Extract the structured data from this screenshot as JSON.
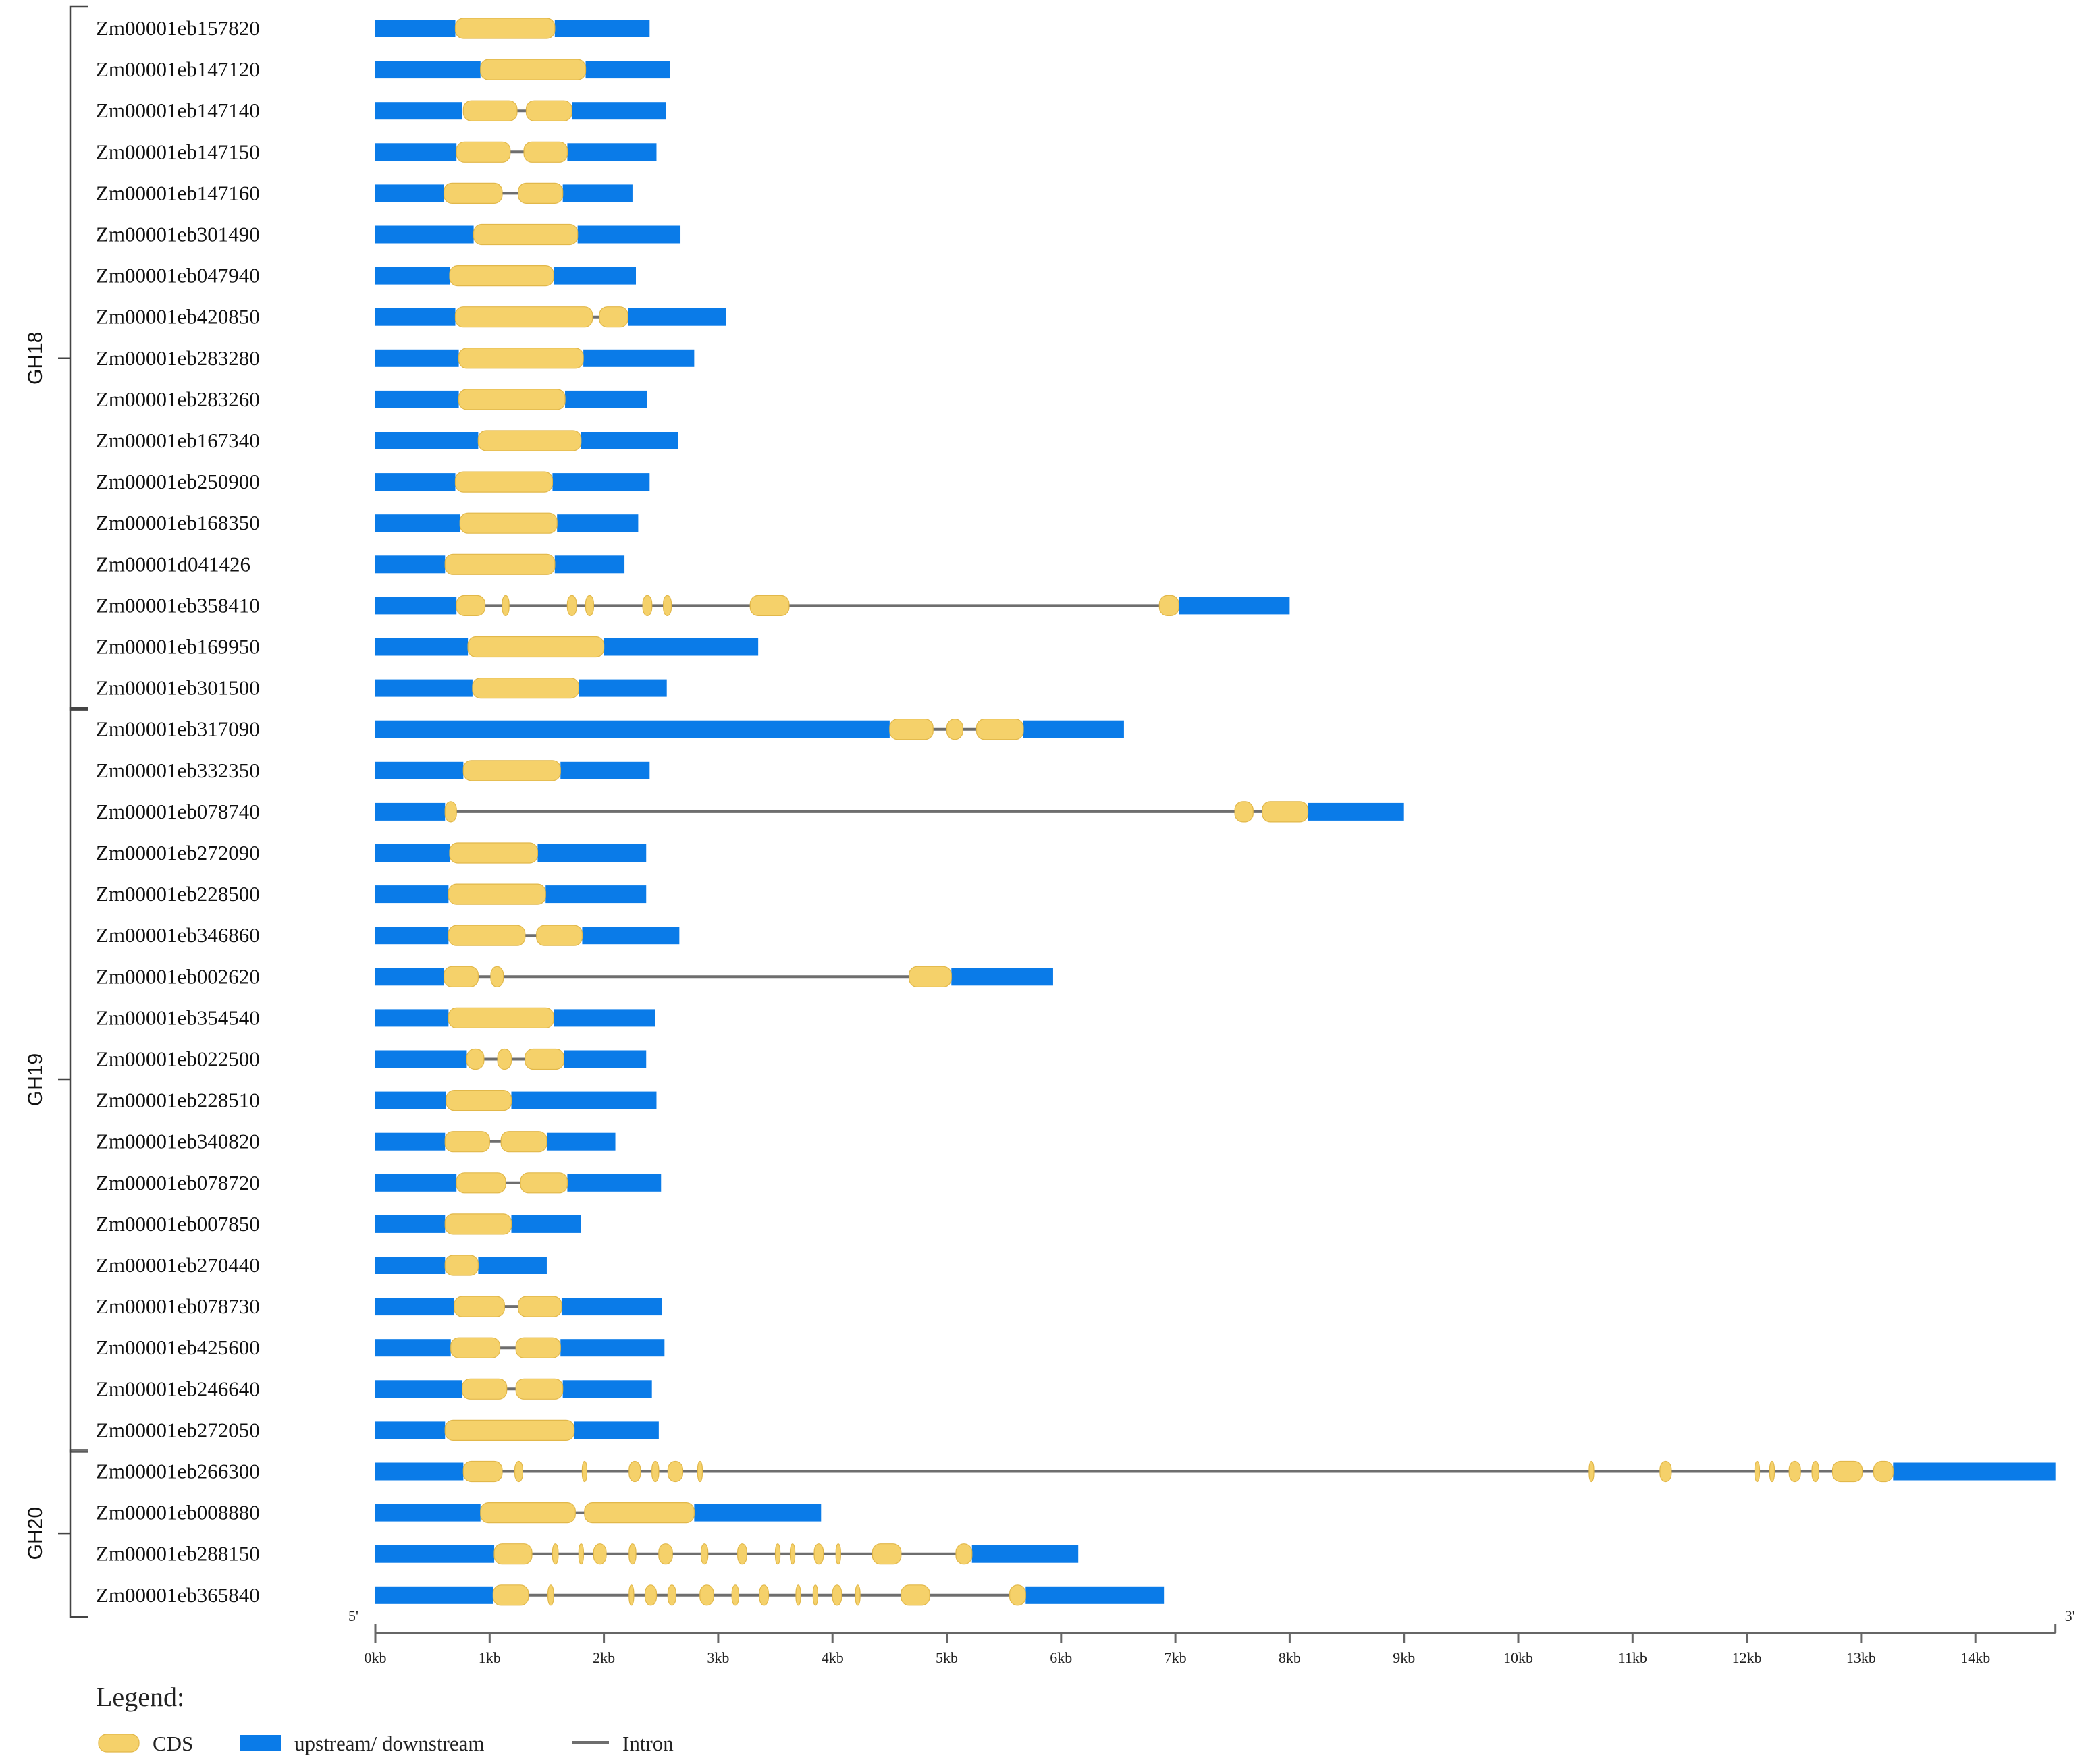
{
  "colors": {
    "cds": "#F5D16A",
    "cds_stroke": "#E2B84A",
    "utr": "#0A7BE8",
    "intron": "#6E6E6E",
    "axis": "#666666",
    "text": "#111111"
  },
  "axis": {
    "min_kb": 0,
    "max_kb": 14.7,
    "start_label": "5'",
    "end_label": "3'",
    "ticks": [
      "0kb",
      "1kb",
      "2kb",
      "3kb",
      "4kb",
      "5kb",
      "6kb",
      "7kb",
      "8kb",
      "9kb",
      "10kb",
      "11kb",
      "12kb",
      "13kb",
      "14kb"
    ]
  },
  "legend": {
    "title": "Legend:",
    "items": [
      {
        "type": "cds",
        "label": "CDS"
      },
      {
        "type": "utr",
        "label": "upstream/ downstream"
      },
      {
        "type": "intron",
        "label": "Intron"
      }
    ]
  },
  "groups": [
    {
      "label": "GH18",
      "first": 0,
      "last": 16
    },
    {
      "label": "GH19",
      "first": 17,
      "last": 34
    },
    {
      "label": "GH20",
      "first": 35,
      "last": 38
    }
  ],
  "chart_data": {
    "type": "gene-structure",
    "unit": "kb",
    "genes": [
      {
        "name": "Zm00001eb157820",
        "utr5": [
          0,
          0.7
        ],
        "cds": [
          [
            0.7,
            1.57
          ]
        ],
        "utr3": [
          1.57,
          2.4
        ]
      },
      {
        "name": "Zm00001eb147120",
        "utr5": [
          0,
          0.92
        ],
        "cds": [
          [
            0.92,
            1.84
          ]
        ],
        "utr3": [
          1.84,
          2.58
        ]
      },
      {
        "name": "Zm00001eb147140",
        "utr5": [
          0,
          0.76
        ],
        "cds": [
          [
            0.77,
            1.24
          ],
          [
            1.32,
            1.72
          ]
        ],
        "utr3": [
          1.72,
          2.54
        ]
      },
      {
        "name": "Zm00001eb147150",
        "utr5": [
          0,
          0.71
        ],
        "cds": [
          [
            0.71,
            1.18
          ],
          [
            1.3,
            1.68
          ]
        ],
        "utr3": [
          1.68,
          2.46
        ]
      },
      {
        "name": "Zm00001eb147160",
        "utr5": [
          0,
          0.6
        ],
        "cds": [
          [
            0.6,
            1.11
          ],
          [
            1.25,
            1.64
          ]
        ],
        "utr3": [
          1.64,
          2.25
        ]
      },
      {
        "name": "Zm00001eb301490",
        "utr5": [
          0,
          0.86
        ],
        "cds": [
          [
            0.86,
            1.77
          ]
        ],
        "utr3": [
          1.77,
          2.67
        ]
      },
      {
        "name": "Zm00001eb047940",
        "utr5": [
          0,
          0.65
        ],
        "cds": [
          [
            0.65,
            1.56
          ]
        ],
        "utr3": [
          1.56,
          2.28
        ]
      },
      {
        "name": "Zm00001eb420850",
        "utr5": [
          0,
          0.7
        ],
        "cds": [
          [
            0.7,
            1.9
          ],
          [
            1.96,
            2.21
          ]
        ],
        "utr3": [
          2.21,
          3.07
        ]
      },
      {
        "name": "Zm00001eb283280",
        "utr5": [
          0,
          0.73
        ],
        "cds": [
          [
            0.73,
            1.82
          ]
        ],
        "utr3": [
          1.82,
          2.79
        ]
      },
      {
        "name": "Zm00001eb283260",
        "utr5": [
          0,
          0.73
        ],
        "cds": [
          [
            0.73,
            1.66
          ]
        ],
        "utr3": [
          1.66,
          2.38
        ]
      },
      {
        "name": "Zm00001eb167340",
        "utr5": [
          0,
          0.9
        ],
        "cds": [
          [
            0.9,
            1.8
          ]
        ],
        "utr3": [
          1.8,
          2.65
        ]
      },
      {
        "name": "Zm00001eb250900",
        "utr5": [
          0,
          0.7
        ],
        "cds": [
          [
            0.7,
            1.55
          ]
        ],
        "utr3": [
          1.55,
          2.4
        ]
      },
      {
        "name": "Zm00001eb168350",
        "utr5": [
          0,
          0.74
        ],
        "cds": [
          [
            0.74,
            1.59
          ]
        ],
        "utr3": [
          1.59,
          2.3
        ]
      },
      {
        "name": "Zm00001d041426",
        "utr5": [
          0,
          0.61
        ],
        "cds": [
          [
            0.61,
            1.57
          ]
        ],
        "utr3": [
          1.57,
          2.18
        ]
      },
      {
        "name": "Zm00001eb358410",
        "utr5": [
          0,
          0.71
        ],
        "cds": [
          [
            0.71,
            0.96
          ],
          [
            1.11,
            1.17
          ],
          [
            1.68,
            1.76
          ],
          [
            1.84,
            1.91
          ],
          [
            2.34,
            2.42
          ],
          [
            2.52,
            2.59
          ],
          [
            3.28,
            3.62
          ],
          [
            6.86,
            7.03
          ]
        ],
        "utr3": [
          7.03,
          8.0
        ]
      },
      {
        "name": "Zm00001eb169950",
        "utr5": [
          0,
          0.81
        ],
        "cds": [
          [
            0.81,
            2.0
          ]
        ],
        "utr3": [
          2.0,
          3.35
        ]
      },
      {
        "name": "Zm00001eb301500",
        "utr5": [
          0,
          0.85
        ],
        "cds": [
          [
            0.85,
            1.78
          ]
        ],
        "utr3": [
          1.78,
          2.55
        ]
      },
      {
        "name": "Zm00001eb317090",
        "utr5": [
          0,
          4.5
        ],
        "cds": [
          [
            4.5,
            4.88
          ],
          [
            5.0,
            5.14
          ],
          [
            5.26,
            5.67
          ]
        ],
        "utr3": [
          5.67,
          6.55
        ]
      },
      {
        "name": "Zm00001eb332350",
        "utr5": [
          0,
          0.77
        ],
        "cds": [
          [
            0.77,
            1.62
          ]
        ],
        "utr3": [
          1.62,
          2.4
        ]
      },
      {
        "name": "Zm00001eb078740",
        "utr5": [
          0,
          0.61
        ],
        "cds": [
          [
            0.61,
            0.71
          ],
          [
            7.52,
            7.68
          ],
          [
            7.76,
            8.16
          ]
        ],
        "utr3": [
          8.16,
          9.0
        ]
      },
      {
        "name": "Zm00001eb272090",
        "utr5": [
          0,
          0.65
        ],
        "cds": [
          [
            0.65,
            1.42
          ]
        ],
        "utr3": [
          1.42,
          2.37
        ]
      },
      {
        "name": "Zm00001eb228500",
        "utr5": [
          0,
          0.64
        ],
        "cds": [
          [
            0.64,
            1.49
          ]
        ],
        "utr3": [
          1.49,
          2.37
        ]
      },
      {
        "name": "Zm00001eb346860",
        "utr5": [
          0,
          0.64
        ],
        "cds": [
          [
            0.64,
            1.31
          ],
          [
            1.41,
            1.81
          ]
        ],
        "utr3": [
          1.81,
          2.66
        ]
      },
      {
        "name": "Zm00001eb002620",
        "utr5": [
          0,
          0.6
        ],
        "cds": [
          [
            0.6,
            0.9
          ],
          [
            1.01,
            1.12
          ],
          [
            4.67,
            5.04
          ]
        ],
        "utr3": [
          5.04,
          5.93
        ]
      },
      {
        "name": "Zm00001eb354540",
        "utr5": [
          0,
          0.64
        ],
        "cds": [
          [
            0.64,
            1.56
          ]
        ],
        "utr3": [
          1.56,
          2.45
        ]
      },
      {
        "name": "Zm00001eb022500",
        "utr5": [
          0,
          0.8
        ],
        "cds": [
          [
            0.8,
            0.95
          ],
          [
            1.07,
            1.19
          ],
          [
            1.31,
            1.65
          ]
        ],
        "utr3": [
          1.65,
          2.37
        ]
      },
      {
        "name": "Zm00001eb228510",
        "utr5": [
          0,
          0.62
        ],
        "cds": [
          [
            0.62,
            1.19
          ]
        ],
        "utr3": [
          1.19,
          2.46
        ]
      },
      {
        "name": "Zm00001eb340820",
        "utr5": [
          0,
          0.61
        ],
        "cds": [
          [
            0.61,
            1.0
          ],
          [
            1.1,
            1.5
          ]
        ],
        "utr3": [
          1.5,
          2.1
        ]
      },
      {
        "name": "Zm00001eb078720",
        "utr5": [
          0,
          0.71
        ],
        "cds": [
          [
            0.71,
            1.14
          ],
          [
            1.27,
            1.68
          ]
        ],
        "utr3": [
          1.68,
          2.5
        ]
      },
      {
        "name": "Zm00001eb007850",
        "utr5": [
          0,
          0.61
        ],
        "cds": [
          [
            0.61,
            1.19
          ]
        ],
        "utr3": [
          1.19,
          1.8
        ]
      },
      {
        "name": "Zm00001eb270440",
        "utr5": [
          0,
          0.61
        ],
        "cds": [
          [
            0.61,
            0.9
          ]
        ],
        "utr3": [
          0.9,
          1.5
        ]
      },
      {
        "name": "Zm00001eb078730",
        "utr5": [
          0,
          0.69
        ],
        "cds": [
          [
            0.69,
            1.13
          ],
          [
            1.25,
            1.63
          ]
        ],
        "utr3": [
          1.63,
          2.51
        ]
      },
      {
        "name": "Zm00001eb425600",
        "utr5": [
          0,
          0.66
        ],
        "cds": [
          [
            0.66,
            1.09
          ],
          [
            1.23,
            1.62
          ]
        ],
        "utr3": [
          1.62,
          2.53
        ]
      },
      {
        "name": "Zm00001eb246640",
        "utr5": [
          0,
          0.76
        ],
        "cds": [
          [
            0.76,
            1.15
          ],
          [
            1.23,
            1.64
          ]
        ],
        "utr3": [
          1.64,
          2.42
        ]
      },
      {
        "name": "Zm00001eb272050",
        "utr5": [
          0,
          0.61
        ],
        "cds": [
          [
            0.61,
            1.74
          ]
        ],
        "utr3": [
          1.74,
          2.48
        ]
      },
      {
        "name": "Zm00001eb266300",
        "utr5": [
          0,
          0.77
        ],
        "cds": [
          [
            0.77,
            1.11
          ],
          [
            1.22,
            1.29
          ],
          [
            1.81,
            1.84
          ],
          [
            2.22,
            2.32
          ],
          [
            2.42,
            2.48
          ],
          [
            2.56,
            2.69
          ],
          [
            2.82,
            2.84
          ],
          [
            10.62,
            10.66
          ],
          [
            11.24,
            11.34
          ],
          [
            12.07,
            12.11
          ],
          [
            12.2,
            12.24
          ],
          [
            12.37,
            12.47
          ],
          [
            12.57,
            12.63
          ],
          [
            12.75,
            13.01
          ],
          [
            13.11,
            13.28
          ]
        ],
        "utr3": [
          13.28,
          14.7
        ]
      },
      {
        "name": "Zm00001eb008880",
        "utr5": [
          0,
          0.92
        ],
        "cds": [
          [
            0.92,
            1.75
          ],
          [
            1.83,
            2.79
          ]
        ],
        "utr3": [
          2.79,
          3.9
        ]
      },
      {
        "name": "Zm00001eb288150",
        "utr5": [
          0,
          1.04
        ],
        "cds": [
          [
            1.04,
            1.37
          ],
          [
            1.55,
            1.6
          ],
          [
            1.78,
            1.82
          ],
          [
            1.91,
            2.02
          ],
          [
            2.22,
            2.28
          ],
          [
            2.48,
            2.6
          ],
          [
            2.85,
            2.91
          ],
          [
            3.17,
            3.25
          ],
          [
            3.5,
            3.54
          ],
          [
            3.63,
            3.67
          ],
          [
            3.84,
            3.92
          ],
          [
            4.03,
            4.07
          ],
          [
            4.35,
            4.6
          ],
          [
            5.08,
            5.22
          ]
        ],
        "utr3": [
          5.22,
          6.15
        ]
      },
      {
        "name": "Zm00001eb365840",
        "utr5": [
          0,
          1.03
        ],
        "cds": [
          [
            1.03,
            1.34
          ],
          [
            1.51,
            1.56
          ],
          [
            2.22,
            2.26
          ],
          [
            2.36,
            2.46
          ],
          [
            2.56,
            2.63
          ],
          [
            2.84,
            2.96
          ],
          [
            3.12,
            3.18
          ],
          [
            3.36,
            3.44
          ],
          [
            3.68,
            3.72
          ],
          [
            3.83,
            3.87
          ],
          [
            4.0,
            4.08
          ],
          [
            4.2,
            4.24
          ],
          [
            4.6,
            4.85
          ],
          [
            5.55,
            5.69
          ]
        ],
        "utr3": [
          5.69,
          6.9
        ]
      }
    ]
  }
}
